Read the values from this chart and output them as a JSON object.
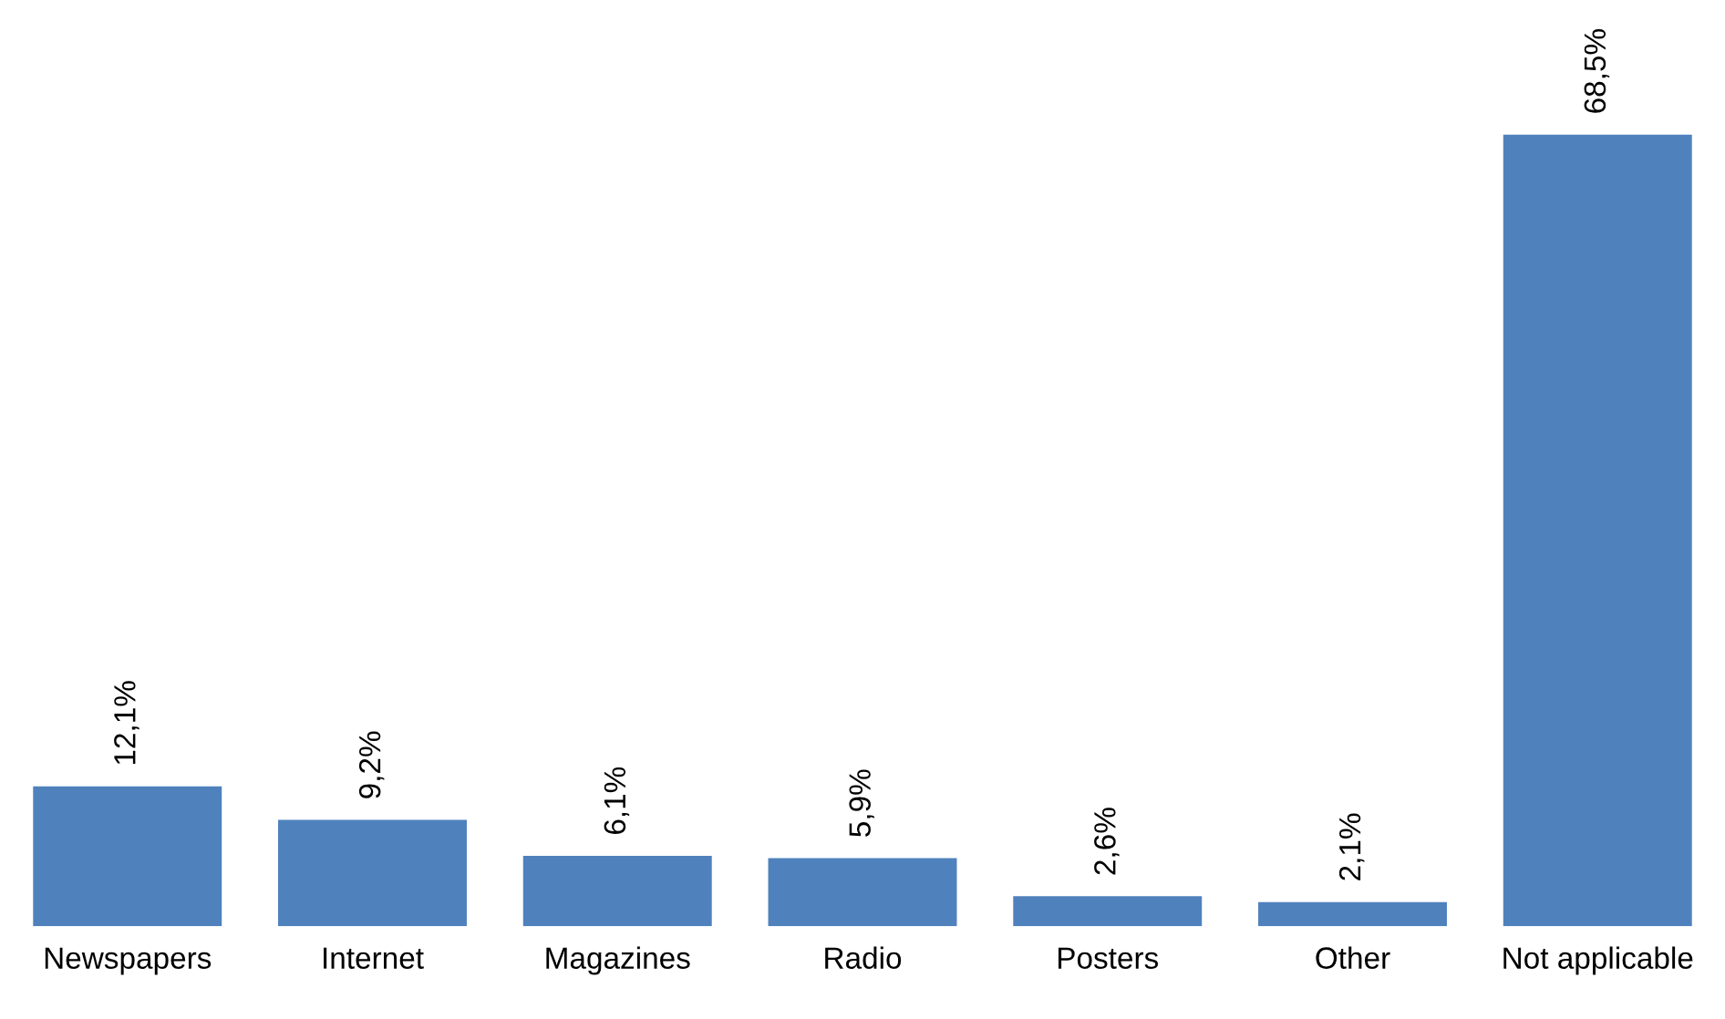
{
  "chart_data": {
    "type": "bar",
    "categories": [
      "Newspapers",
      "Internet",
      "Magazines",
      "Radio",
      "Posters",
      "Other",
      "Not applicable"
    ],
    "values": [
      12.1,
      9.2,
      6.1,
      5.9,
      2.6,
      2.1,
      68.5
    ],
    "value_labels": [
      "12,1%",
      "9,2%",
      "6,1%",
      "5,9%",
      "2,6%",
      "2,1%",
      "68,5%"
    ],
    "color": "#4f81bd",
    "tick_labels": "x",
    "grid": false
  }
}
